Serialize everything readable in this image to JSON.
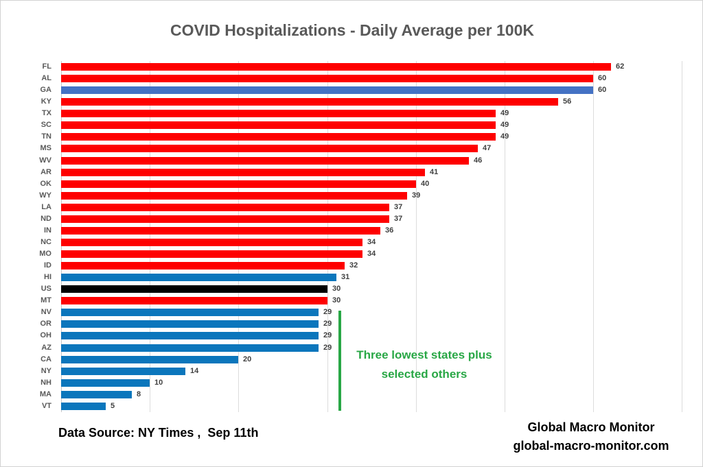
{
  "title": "COVID Hospitalizations - Daily Average per 100K",
  "chart_data": {
    "type": "bar",
    "orientation": "horizontal",
    "title": "COVID Hospitalizations - Daily Average per 100K",
    "xlim": [
      0,
      70
    ],
    "gridline_interval": 10,
    "grid": true,
    "value_labels_shown": true,
    "tick_labels_shown": false,
    "bars": [
      {
        "label": "FL",
        "value": 62,
        "color": "#fe0000"
      },
      {
        "label": "AL",
        "value": 60,
        "color": "#fe0000"
      },
      {
        "label": "GA",
        "value": 60,
        "color": "#4472c4"
      },
      {
        "label": "KY",
        "value": 56,
        "color": "#fe0000"
      },
      {
        "label": "TX",
        "value": 49,
        "color": "#fe0000"
      },
      {
        "label": "SC",
        "value": 49,
        "color": "#fe0000"
      },
      {
        "label": "TN",
        "value": 49,
        "color": "#fe0000"
      },
      {
        "label": "MS",
        "value": 47,
        "color": "#fe0000"
      },
      {
        "label": "WV",
        "value": 46,
        "color": "#fe0000"
      },
      {
        "label": "AR",
        "value": 41,
        "color": "#fe0000"
      },
      {
        "label": "OK",
        "value": 40,
        "color": "#fe0000"
      },
      {
        "label": "WY",
        "value": 39,
        "color": "#fe0000"
      },
      {
        "label": "LA",
        "value": 37,
        "color": "#fe0000"
      },
      {
        "label": "ND",
        "value": 37,
        "color": "#fe0000"
      },
      {
        "label": "IN",
        "value": 36,
        "color": "#fe0000"
      },
      {
        "label": "NC",
        "value": 34,
        "color": "#fe0000"
      },
      {
        "label": "MO",
        "value": 34,
        "color": "#fe0000"
      },
      {
        "label": "ID",
        "value": 32,
        "color": "#fe0000"
      },
      {
        "label": "HI",
        "value": 31,
        "color": "#0b76bc"
      },
      {
        "label": "US",
        "value": 30,
        "color": "#000000"
      },
      {
        "label": "MT",
        "value": 30,
        "color": "#fe0000"
      },
      {
        "label": "NV",
        "value": 29,
        "color": "#0b76bc"
      },
      {
        "label": "OR",
        "value": 29,
        "color": "#0b76bc"
      },
      {
        "label": "OH",
        "value": 29,
        "color": "#0b76bc"
      },
      {
        "label": "AZ",
        "value": 29,
        "color": "#0b76bc"
      },
      {
        "label": "CA",
        "value": 20,
        "color": "#0b76bc"
      },
      {
        "label": "NY",
        "value": 14,
        "color": "#0b76bc"
      },
      {
        "label": "NH",
        "value": 10,
        "color": "#0b76bc"
      },
      {
        "label": "MA",
        "value": 8,
        "color": "#0b76bc"
      },
      {
        "label": "VT",
        "value": 5,
        "color": "#0b76bc"
      }
    ]
  },
  "annotation": {
    "line1": "Three lowest states plus",
    "line2": "selected others",
    "color": "#28a745"
  },
  "footer": {
    "source": "Data Source: NY Times ,  Sep 11th",
    "brand_line1": "Global Macro Monitor",
    "brand_line2": "global-macro-monitor.com"
  },
  "colors": {
    "high_states": "#fe0000",
    "georgia": "#4472c4",
    "low_states": "#0b76bc",
    "us_average": "#000000",
    "annotation_green": "#28a745",
    "gridline": "#dcdcdc",
    "title_text": "#595959"
  }
}
